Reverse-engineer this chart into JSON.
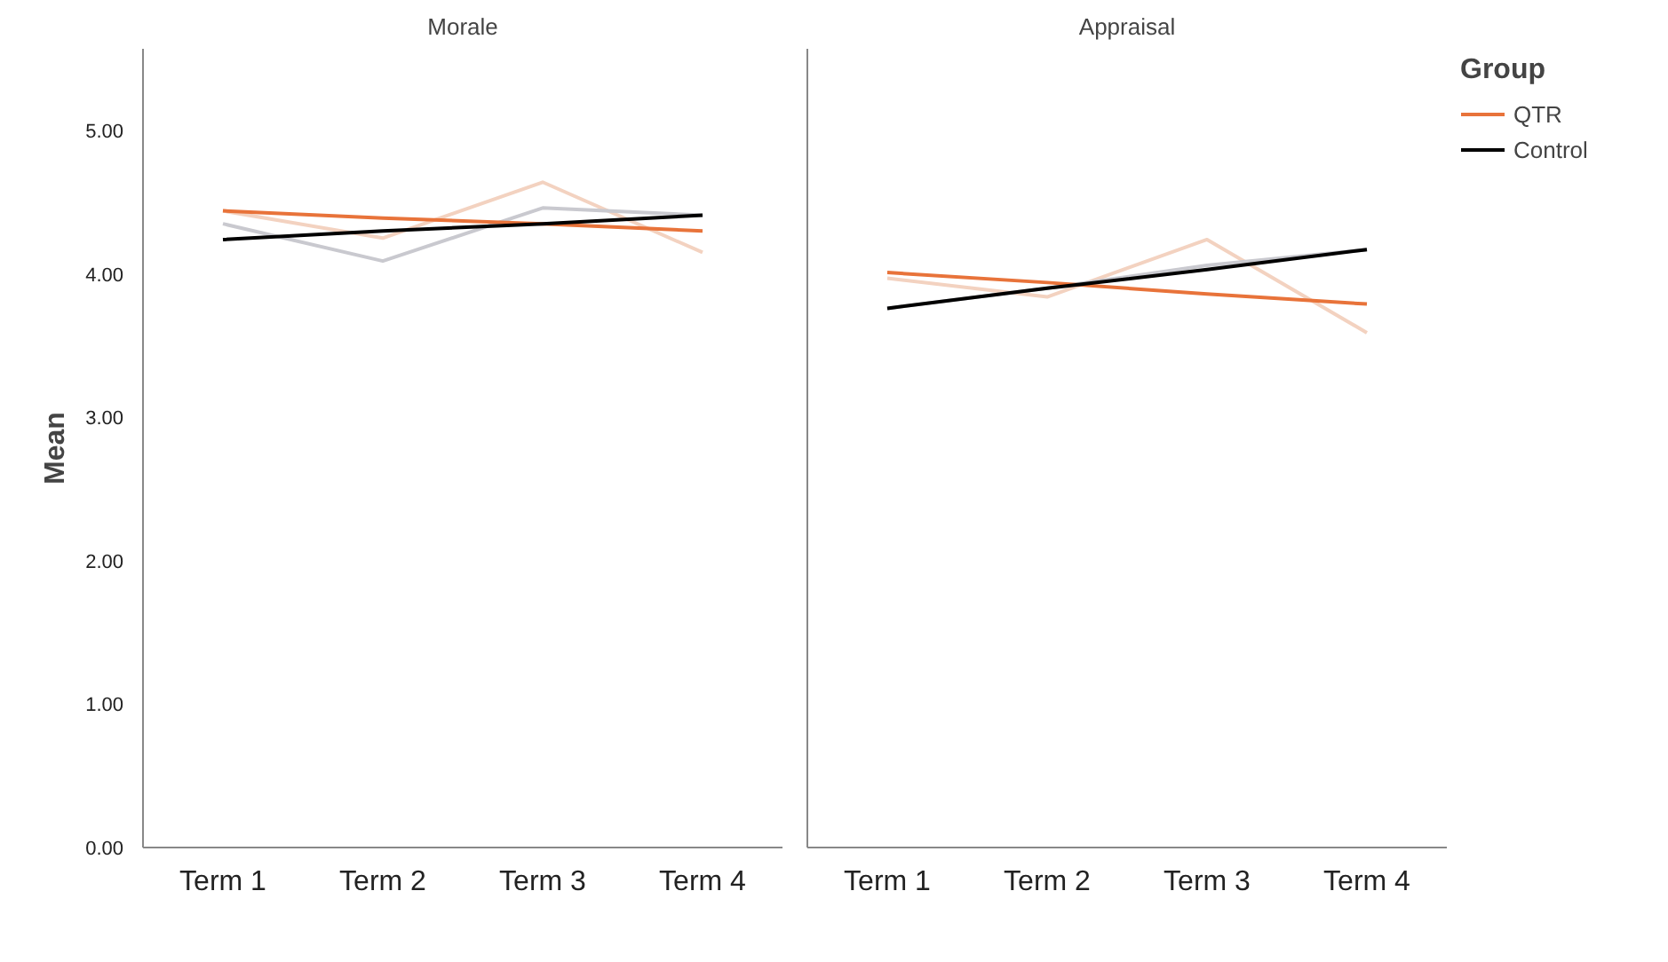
{
  "chart_data": [
    {
      "type": "line",
      "title": "Morale",
      "ylabel": "Mean",
      "categories": [
        "Term 1",
        "Term 2",
        "Term 3",
        "Term 4"
      ],
      "ylim": [
        0,
        5.57
      ],
      "yticks": [
        {
          "value": 0,
          "label": "0.00"
        },
        {
          "value": 1,
          "label": "1.00"
        },
        {
          "value": 2,
          "label": "2.00"
        },
        {
          "value": 3,
          "label": "3.00"
        },
        {
          "value": 4,
          "label": "4.00"
        },
        {
          "value": 5,
          "label": "5.00"
        }
      ],
      "grid": false,
      "marker": "none",
      "line_style": "solid",
      "series": [
        {
          "color": "#f3d2c0",
          "values": [
            4.44,
            4.25,
            4.64,
            4.15
          ]
        },
        {
          "color": "#c9c9cf",
          "values": [
            4.35,
            4.09,
            4.46,
            4.41
          ]
        },
        {
          "color": "#e8733a",
          "values": [
            4.44,
            4.39,
            4.35,
            4.3
          ]
        },
        {
          "color": "#000000",
          "values": [
            4.24,
            4.3,
            4.35,
            4.41
          ]
        }
      ]
    },
    {
      "type": "line",
      "title": "Appraisal",
      "legend_title": "Group",
      "categories": [
        "Term 1",
        "Term 2",
        "Term 3",
        "Term 4"
      ],
      "ylim": [
        0,
        5.57
      ],
      "tick_labels": "x",
      "grid": false,
      "legend": "right",
      "marker": "none",
      "line_style": "solid",
      "series": [
        {
          "color": "#f3d2c0",
          "values": [
            3.97,
            3.84,
            4.24,
            3.59
          ]
        },
        {
          "color": "#c9c9cf",
          "values": [
            3.76,
            3.9,
            4.06,
            4.17
          ]
        },
        {
          "name": "QTR",
          "color": "#e8733a",
          "values": [
            4.01,
            3.94,
            3.86,
            3.79
          ]
        },
        {
          "name": "Control",
          "color": "#000000",
          "values": [
            3.76,
            3.9,
            4.03,
            4.17
          ]
        }
      ]
    }
  ]
}
